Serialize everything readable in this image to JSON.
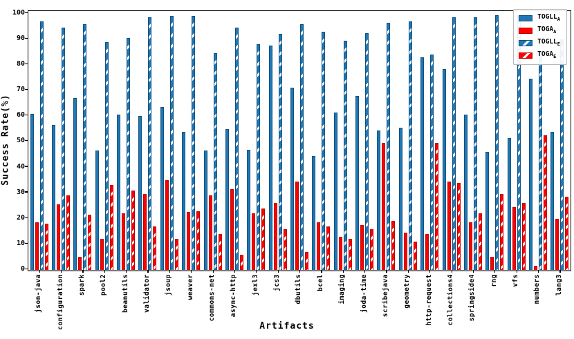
{
  "chart_data": {
    "type": "bar",
    "title": "",
    "xlabel": "Artifacts",
    "ylabel": "Success Rate(%)",
    "ylim": [
      0,
      101
    ],
    "yticks": [
      0,
      10,
      20,
      30,
      40,
      50,
      60,
      70,
      80,
      90,
      100
    ],
    "grid": false,
    "legend_position": "top-right",
    "categories": [
      "json-java",
      "configuration",
      "spark",
      "pool2",
      "beanutils",
      "validator",
      "jsoup",
      "weaver",
      "commons-net",
      "async-http",
      "jexl3",
      "jcs3",
      "dbutils",
      "bcel",
      "imaging",
      "joda-time",
      "scribejava",
      "geometry",
      "http-request",
      "collections4",
      "springside4",
      "rng",
      "vfs",
      "numbers",
      "lang3"
    ],
    "series": [
      {
        "name": "TOGLL_A",
        "label_base": "TOGLL",
        "label_sub": "A",
        "color": "#1f77b4",
        "edge_color": "#14527e",
        "hatch": false,
        "values": [
          61,
          56.5,
          67,
          46.5,
          60.5,
          60,
          63.5,
          54,
          46.5,
          55,
          47,
          87.5,
          71,
          44.5,
          61.5,
          68,
          54.5,
          55.5,
          83,
          78.5,
          60.5,
          46,
          51.5,
          74.5,
          54
        ]
      },
      {
        "name": "TOGA_A",
        "label_base": "TOGA",
        "label_sub": "A",
        "color": "#ff0000",
        "edge_color": "#bf0000",
        "hatch": false,
        "values": [
          18.5,
          25.5,
          5,
          12,
          22,
          29.5,
          35,
          22.5,
          29,
          31.5,
          22,
          26,
          34.5,
          18.5,
          13,
          17.5,
          49.5,
          14.5,
          14,
          34.5,
          18.5,
          5,
          24.5,
          1.5,
          20
        ]
      },
      {
        "name": "TOGLL_E",
        "label_base": "TOGLL",
        "label_sub": "E",
        "color": "#1f77b4",
        "edge_color": "#14527e",
        "hatch": true,
        "values": [
          97,
          94.5,
          96,
          89,
          90.5,
          98.5,
          99,
          99,
          84.5,
          94.5,
          88,
          92,
          96,
          93,
          89.5,
          92.5,
          96.5,
          97,
          84,
          98.5,
          98.5,
          99.5,
          99.5,
          84,
          90
        ]
      },
      {
        "name": "TOGA_E",
        "label_base": "TOGA",
        "label_sub": "E",
        "color": "#ff0000",
        "edge_color": "#bf0000",
        "hatch": true,
        "values": [
          18,
          29,
          21.5,
          33,
          31,
          17,
          12,
          23,
          14,
          6,
          24,
          16,
          7,
          17,
          12,
          16,
          19,
          11,
          49.5,
          34,
          22,
          29.5,
          26,
          52.5,
          28.5
        ]
      }
    ]
  }
}
